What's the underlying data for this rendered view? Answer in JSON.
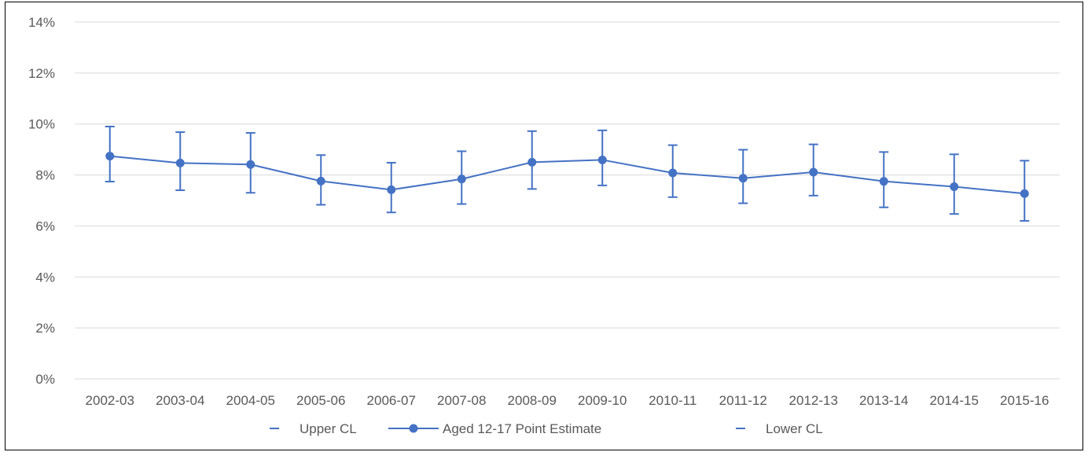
{
  "chart_data": {
    "type": "line",
    "title": "",
    "xlabel": "",
    "ylabel": "",
    "categories": [
      "2002-03",
      "2003-04",
      "2004-05",
      "2005-06",
      "2006-07",
      "2007-08",
      "2008-09",
      "2009-10",
      "2010-11",
      "2011-12",
      "2012-13",
      "2013-14",
      "2014-15",
      "2015-16"
    ],
    "series": [
      {
        "name": "Aged 12-17 Point Estimate",
        "values": [
          8.74,
          8.47,
          8.41,
          7.76,
          7.42,
          7.84,
          8.5,
          8.59,
          8.08,
          7.87,
          8.11,
          7.75,
          7.54,
          7.27
        ]
      },
      {
        "name": "Upper CL",
        "values": [
          9.9,
          9.68,
          9.65,
          8.78,
          8.48,
          8.93,
          9.72,
          9.75,
          9.17,
          8.99,
          9.2,
          8.9,
          8.81,
          8.56
        ]
      },
      {
        "name": "Lower CL",
        "values": [
          7.74,
          7.4,
          7.3,
          6.83,
          6.53,
          6.86,
          7.45,
          7.59,
          7.13,
          6.89,
          7.19,
          6.73,
          6.47,
          6.2
        ]
      }
    ],
    "y_ticks": [
      "0%",
      "2%",
      "4%",
      "6%",
      "8%",
      "10%",
      "12%",
      "14%"
    ],
    "ylim": [
      0,
      14
    ],
    "grid": true,
    "legend_position": "bottom",
    "colors": {
      "series": "#4472C4",
      "grid": "#D9D9D9",
      "text": "#595959"
    }
  }
}
